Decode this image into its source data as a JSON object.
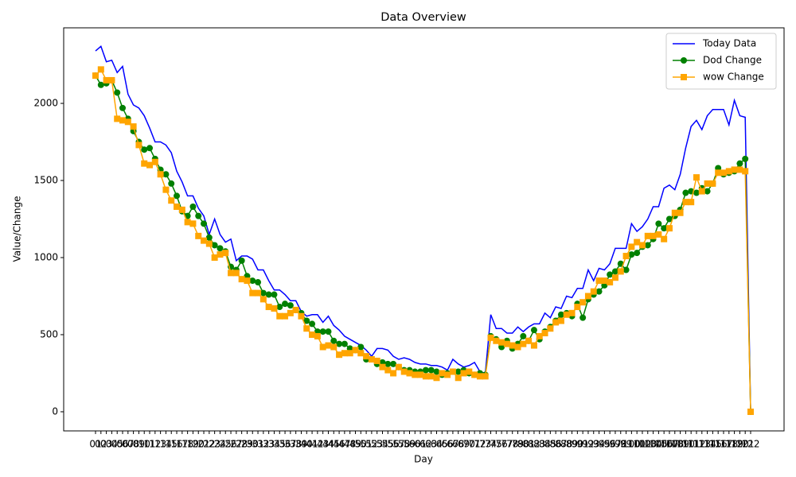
{
  "chart_data": {
    "type": "line",
    "title": "Data Overview",
    "x_label": "Day",
    "y_label": "Value/Change",
    "categories": [
      "01",
      "02",
      "03",
      "04",
      "05",
      "06",
      "07",
      "08",
      "09",
      "10",
      "11",
      "12",
      "13",
      "14",
      "15",
      "16",
      "17",
      "18",
      "19",
      "20",
      "21",
      "22",
      "23",
      "24",
      "25",
      "26",
      "27",
      "28",
      "29",
      "30",
      "31",
      "32",
      "33",
      "34",
      "35",
      "36",
      "37",
      "38",
      "39",
      "40",
      "41",
      "42",
      "43",
      "44",
      "45",
      "46",
      "47",
      "48",
      "49",
      "50",
      "51",
      "52",
      "53",
      "54",
      "55",
      "56",
      "57",
      "58",
      "59",
      "60",
      "61",
      "62",
      "63",
      "64",
      "65",
      "66",
      "67",
      "68",
      "69",
      "70",
      "71",
      "72",
      "73",
      "74",
      "75",
      "76",
      "77",
      "78",
      "79",
      "80",
      "81",
      "82",
      "83",
      "84",
      "85",
      "86",
      "87",
      "88",
      "89",
      "90",
      "91",
      "92",
      "93",
      "94",
      "95",
      "96",
      "97",
      "98",
      "99",
      "100",
      "101",
      "102",
      "103",
      "104",
      "105",
      "106",
      "107",
      "108",
      "109",
      "110",
      "111",
      "112",
      "113",
      "114",
      "115",
      "116",
      "117",
      "118",
      "119",
      "120",
      "121",
      "122"
    ],
    "series": [
      {
        "name": "Today Data",
        "color": "#0000ff",
        "marker": "none",
        "values": [
          2340,
          2370,
          2270,
          2280,
          2200,
          2240,
          2060,
          1990,
          1970,
          1920,
          1840,
          1750,
          1750,
          1730,
          1680,
          1560,
          1490,
          1400,
          1400,
          1320,
          1270,
          1150,
          1250,
          1150,
          1100,
          1120,
          980,
          1010,
          1010,
          990,
          920,
          920,
          850,
          790,
          790,
          760,
          720,
          720,
          650,
          620,
          630,
          630,
          580,
          620,
          560,
          530,
          490,
          470,
          450,
          430,
          400,
          360,
          410,
          410,
          400,
          360,
          340,
          350,
          340,
          320,
          310,
          310,
          300,
          300,
          290,
          270,
          340,
          310,
          290,
          300,
          320,
          260,
          250,
          630,
          540,
          540,
          510,
          510,
          550,
          520,
          550,
          570,
          570,
          640,
          610,
          680,
          670,
          750,
          740,
          800,
          800,
          920,
          850,
          930,
          920,
          960,
          1060,
          1060,
          1060,
          1220,
          1170,
          1200,
          1250,
          1330,
          1330,
          1450,
          1470,
          1440,
          1540,
          1710,
          1850,
          1890,
          1830,
          1920,
          1960,
          1960,
          1960,
          1860,
          2020,
          1920,
          1910,
          0
        ]
      },
      {
        "name": "Dod Change",
        "color": "#008000",
        "marker": "circle",
        "values": [
          2180,
          2120,
          2130,
          2150,
          2070,
          1970,
          1900,
          1820,
          1750,
          1700,
          1710,
          1640,
          1570,
          1540,
          1480,
          1400,
          1300,
          1270,
          1330,
          1270,
          1220,
          1130,
          1080,
          1060,
          1040,
          940,
          920,
          980,
          880,
          850,
          840,
          770,
          760,
          760,
          680,
          700,
          690,
          660,
          640,
          590,
          570,
          520,
          520,
          520,
          460,
          440,
          440,
          410,
          400,
          420,
          340,
          340,
          310,
          320,
          310,
          310,
          290,
          270,
          270,
          260,
          260,
          270,
          270,
          260,
          240,
          250,
          260,
          260,
          270,
          250,
          240,
          250,
          240,
          490,
          470,
          420,
          460,
          410,
          440,
          490,
          460,
          530,
          470,
          520,
          550,
          590,
          630,
          640,
          620,
          700,
          610,
          730,
          760,
          780,
          820,
          890,
          910,
          960,
          920,
          1020,
          1030,
          1070,
          1080,
          1120,
          1220,
          1190,
          1250,
          1270,
          1310,
          1420,
          1430,
          1420,
          1450,
          1430,
          1480,
          1580,
          1540,
          1550,
          1560,
          1610,
          1640,
          0
        ]
      },
      {
        "name": "wow Change",
        "color": "#ffa500",
        "marker": "square",
        "values": [
          2180,
          2220,
          2150,
          2150,
          1900,
          1890,
          1880,
          1850,
          1730,
          1610,
          1600,
          1620,
          1540,
          1440,
          1370,
          1330,
          1310,
          1230,
          1220,
          1140,
          1110,
          1090,
          1000,
          1020,
          1030,
          900,
          900,
          860,
          850,
          770,
          770,
          730,
          680,
          670,
          620,
          620,
          640,
          660,
          620,
          540,
          500,
          490,
          420,
          430,
          420,
          370,
          380,
          380,
          400,
          380,
          360,
          340,
          330,
          290,
          270,
          250,
          290,
          260,
          250,
          240,
          240,
          230,
          230,
          220,
          250,
          240,
          260,
          220,
          250,
          260,
          240,
          230,
          230,
          480,
          460,
          450,
          440,
          430,
          420,
          440,
          460,
          430,
          490,
          510,
          540,
          580,
          590,
          630,
          640,
          680,
          710,
          750,
          780,
          850,
          850,
          840,
          870,
          910,
          1010,
          1070,
          1100,
          1080,
          1140,
          1140,
          1150,
          1120,
          1190,
          1290,
          1290,
          1360,
          1360,
          1520,
          1430,
          1480,
          1480,
          1550,
          1550,
          1560,
          1570,
          1570,
          1560,
          0
        ]
      }
    ],
    "ylim": [
      -124,
      2490
    ],
    "yticks": [
      0,
      500,
      1000,
      1500,
      2000
    ],
    "grid": false,
    "legend": "upper right"
  }
}
